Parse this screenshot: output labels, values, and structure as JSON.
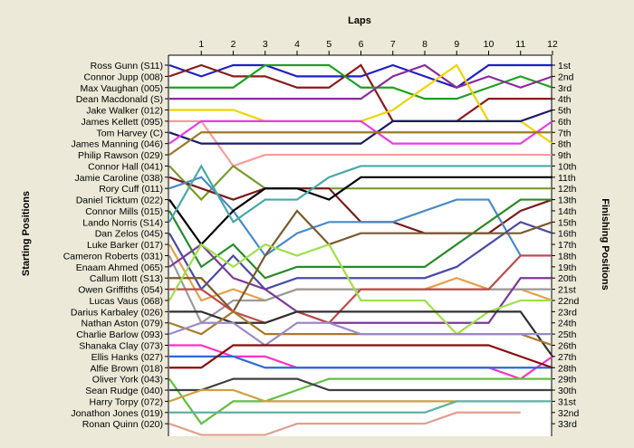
{
  "chart_data": {
    "type": "line",
    "title": "",
    "xlabel": "Laps",
    "ylabel_left": "Starting Positions",
    "ylabel_right": "Finishing Positions",
    "x": [
      0,
      1,
      2,
      3,
      4,
      5,
      6,
      7,
      8,
      9,
      10,
      11,
      12
    ],
    "x_tick_labels": [
      "1",
      "2",
      "3",
      "4",
      "5",
      "6",
      "7",
      "8",
      "9",
      "10",
      "11",
      "12"
    ],
    "finishing_labels": [
      "1st",
      "2nd",
      "3rd",
      "4th",
      "5th",
      "6th",
      "7th",
      "8th",
      "9th",
      "10th",
      "11th",
      "12th",
      "13th",
      "14th",
      "15th",
      "16th",
      "17th",
      "18th",
      "19th",
      "20th",
      "21st",
      "22nd",
      "23rd",
      "24th",
      "25th",
      "26th",
      "27th",
      "28th",
      "29th",
      "30th",
      "31st",
      "32nd",
      "33rd"
    ],
    "grid": false,
    "series": [
      {
        "name": "Ross Gunn (S11)",
        "color": "#1f1fc8",
        "positions": [
          1,
          2,
          1,
          1,
          2,
          2,
          2,
          1,
          2,
          3,
          1,
          1,
          1
        ]
      },
      {
        "name": "Connor Jupp (008)",
        "color": "#8b1a1a",
        "positions": [
          2,
          1,
          2,
          2,
          3,
          3,
          1,
          6,
          6,
          6,
          4,
          4,
          4
        ]
      },
      {
        "name": "Max Vaughan (005)",
        "color": "#1fa01f",
        "positions": [
          3,
          3,
          3,
          1,
          1,
          1,
          3,
          3,
          4,
          4,
          3,
          2,
          3
        ]
      },
      {
        "name": "Dean Macdonald (S)",
        "color": "#8a2b9a",
        "positions": [
          4,
          4,
          4,
          4,
          4,
          4,
          4,
          2,
          1,
          3,
          2,
          3,
          2
        ]
      },
      {
        "name": "Jake Walker (012)",
        "color": "#f0d400",
        "positions": [
          5,
          5,
          5,
          6,
          6,
          6,
          6,
          5,
          3,
          1,
          6,
          6,
          8
        ]
      },
      {
        "name": "James Kellett (095)",
        "color": "#ff9a9a",
        "positions": [
          6,
          6,
          10,
          9,
          9,
          9,
          9,
          9,
          9,
          9,
          9,
          9,
          9
        ]
      },
      {
        "name": "Tom Harvey (C)",
        "color": "#1a1a6a",
        "positions": [
          7,
          8,
          8,
          8,
          8,
          8,
          8,
          6,
          6,
          6,
          6,
          6,
          5
        ]
      },
      {
        "name": "James Manning (046)",
        "color": "#e83ce8",
        "positions": [
          8,
          6,
          6,
          6,
          6,
          6,
          6,
          8,
          8,
          8,
          8,
          8,
          6
        ]
      },
      {
        "name": "Philip Rawson (029)",
        "color": "#9b7a2a",
        "positions": [
          9,
          7,
          7,
          7,
          7,
          7,
          7,
          7,
          7,
          7,
          7,
          7,
          7
        ]
      },
      {
        "name": "Connor Hall (041)",
        "color": "#7a9a2a",
        "positions": [
          10,
          13,
          10,
          12,
          12,
          12,
          12,
          12,
          12,
          12,
          12,
          12,
          12
        ]
      },
      {
        "name": "Jamie Caroline (038)",
        "color": "#7a1a1a",
        "positions": [
          11,
          12,
          13,
          12,
          12,
          12,
          15,
          15,
          16,
          16,
          16,
          14,
          13
        ]
      },
      {
        "name": "Rory Cuff (011)",
        "color": "#4a8ac8",
        "positions": [
          12,
          11,
          14,
          18,
          16,
          15,
          15,
          15,
          14,
          13,
          13,
          18,
          18
        ]
      },
      {
        "name": "Daniel Ticktum (022)",
        "color": "#000000",
        "positions": [
          13,
          17,
          14,
          12,
          12,
          13,
          11,
          11,
          11,
          11,
          11,
          11,
          11
        ]
      },
      {
        "name": "Connor Mills (015)",
        "color": "#2a8a2a",
        "positions": [
          14,
          19,
          17,
          20,
          19,
          19,
          19,
          19,
          19,
          17,
          15,
          13,
          13
        ]
      },
      {
        "name": "Lando Norris (S14)",
        "color": "#4aa8a8",
        "positions": [
          15,
          10,
          15,
          13,
          13,
          11,
          10,
          10,
          10,
          10,
          10,
          10,
          10
        ]
      },
      {
        "name": "Dan Zelos (045)",
        "color": "#4a4aa8",
        "positions": [
          16,
          21,
          18,
          21,
          20,
          20,
          20,
          20,
          20,
          19,
          17,
          15,
          16
        ]
      },
      {
        "name": "Luke Barker (017)",
        "color": "#e8a04a",
        "positions": [
          17,
          22,
          21,
          22,
          21,
          21,
          21,
          21,
          21,
          20,
          21,
          21,
          22
        ]
      },
      {
        "name": "Cameron Roberts (031)",
        "color": "#9a9a9a",
        "positions": [
          18,
          24,
          22,
          22,
          21,
          21,
          21,
          21,
          21,
          21,
          21,
          21,
          21
        ]
      },
      {
        "name": "Enaam Ahmed (065)",
        "color": "#7a3a9a",
        "positions": [
          19,
          17,
          20,
          21,
          23,
          24,
          24,
          24,
          24,
          24,
          24,
          20,
          20
        ]
      },
      {
        "name": "Callum Ilott (S13)",
        "color": "#7a5a2a",
        "positions": [
          20,
          20,
          23,
          18,
          14,
          17,
          16,
          16,
          16,
          16,
          16,
          16,
          15
        ]
      },
      {
        "name": "Owen Griffiths (054)",
        "color": "#c04a4a",
        "positions": [
          21,
          21,
          23,
          24,
          23,
          24,
          21,
          21,
          21,
          21,
          21,
          18,
          18
        ]
      },
      {
        "name": "Lucas Vaus (068)",
        "color": "#a0e04a",
        "positions": [
          22,
          17,
          19,
          17,
          18,
          17,
          22,
          22,
          22,
          25,
          23,
          22,
          22
        ]
      },
      {
        "name": "Darius Karbaley (026)",
        "color": "#303030",
        "positions": [
          23,
          23,
          24,
          24,
          23,
          23,
          23,
          23,
          23,
          23,
          23,
          23,
          27
        ]
      },
      {
        "name": "Nathan Aston (079)",
        "color": "#a87a2a",
        "positions": [
          24,
          25,
          23,
          25,
          25,
          25,
          25,
          25,
          25,
          25,
          25,
          25,
          26
        ]
      },
      {
        "name": "Charlie Barlow (093)",
        "color": "#9a8ac8",
        "positions": [
          25,
          24,
          24,
          26,
          24,
          24,
          25,
          25,
          25,
          25,
          25,
          25,
          25
        ]
      },
      {
        "name": "Shanaka Clay (073)",
        "color": "#ff30c8",
        "positions": [
          26,
          26,
          27,
          27,
          28,
          28,
          28,
          28,
          28,
          28,
          28,
          29,
          27
        ]
      },
      {
        "name": "Ellis Hanks (027)",
        "color": "#2a6ad8",
        "positions": [
          27,
          27,
          27,
          28,
          28,
          28,
          28,
          28,
          28,
          28,
          28,
          28,
          28
        ]
      },
      {
        "name": "Alfie Brown (018)",
        "color": "#8a0a0a",
        "positions": [
          28,
          28,
          26,
          26,
          26,
          26,
          26,
          26,
          26,
          26,
          26,
          27,
          28
        ]
      },
      {
        "name": "Oliver York (043)",
        "color": "#60c040",
        "positions": [
          29,
          33,
          31,
          31,
          30,
          29,
          29,
          29,
          29,
          29,
          29,
          29,
          29
        ]
      },
      {
        "name": "Sean Rudge (040)",
        "color": "#404040",
        "positions": [
          30,
          30,
          29,
          29,
          29,
          30,
          30,
          30,
          30,
          30,
          30,
          30,
          30
        ]
      },
      {
        "name": "Harry Torpy (072)",
        "color": "#d0a040",
        "positions": [
          31,
          30,
          30,
          31,
          31,
          31,
          31,
          31,
          31,
          31
        ]
      },
      {
        "name": "Jonathon Jones (019)",
        "color": "#60b0a0",
        "positions": [
          32,
          32,
          32,
          32,
          32,
          32,
          32,
          32,
          32,
          31,
          31,
          31,
          31
        ]
      },
      {
        "name": "Ronan Quinn (020)",
        "color": "#e0a090",
        "positions": [
          33,
          34,
          34,
          34,
          33,
          33,
          33,
          33,
          33,
          32,
          32,
          32
        ]
      }
    ]
  }
}
